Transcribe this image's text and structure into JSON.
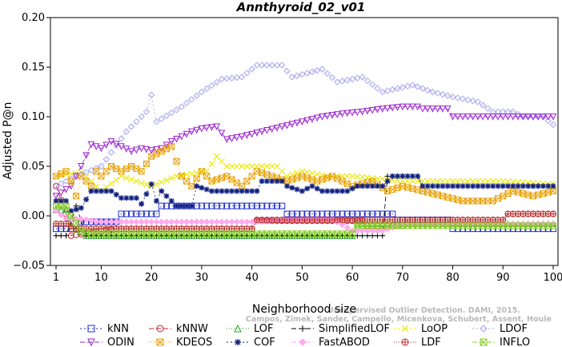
{
  "chart_data": {
    "type": "line",
    "title": "Annthyroid_02_v01",
    "xlabel": "Neighborhood size",
    "ylabel": "Adjusted P@n",
    "xlim": [
      1,
      100
    ],
    "ylim": [
      -0.05,
      0.2
    ],
    "xticks": [
      1,
      10,
      20,
      30,
      40,
      50,
      60,
      70,
      80,
      90,
      100
    ],
    "yticks": [
      -0.05,
      0.0,
      0.05,
      0.1,
      0.15,
      0.2
    ],
    "ytick_labels": [
      "−0.05",
      "0.00",
      "0.05",
      "0.10",
      "0.15",
      "0.20"
    ],
    "grid": false,
    "legend_position": "bottom",
    "watermark": [
      "Campos, Zimek, Sander, Campello, Micenkova, Schubert, Assent, Houle",
      "Unsupervised Outlier Detection. DAMI, 2015."
    ],
    "series": [
      {
        "name": "kNN",
        "color": "#1f2fc8",
        "marker": "square",
        "dash": "2,3",
        "segments": [
          [
            1,
            -0.013
          ],
          [
            5,
            -0.013
          ],
          [
            6,
            -0.006
          ],
          [
            13,
            -0.006
          ],
          [
            14,
            0.002
          ],
          [
            21,
            0.002
          ],
          [
            22,
            0.01
          ],
          [
            46,
            0.01
          ],
          [
            47,
            0.002
          ],
          [
            68,
            0.002
          ],
          [
            69,
            -0.004
          ],
          [
            79,
            -0.004
          ],
          [
            80,
            -0.013
          ],
          [
            100,
            -0.013
          ]
        ]
      },
      {
        "name": "kNNW",
        "color": "#d0202a",
        "marker": "circle",
        "dash": "6,3",
        "segments": [
          [
            1,
            0.03
          ],
          [
            3,
            0.002
          ],
          [
            4,
            -0.02
          ],
          [
            13,
            -0.013
          ],
          [
            40,
            -0.013
          ],
          [
            41,
            -0.005
          ],
          [
            62,
            -0.005
          ],
          [
            63,
            -0.01
          ],
          [
            70,
            -0.01
          ],
          [
            71,
            -0.004
          ],
          [
            90,
            -0.004
          ],
          [
            91,
            0.002
          ],
          [
            100,
            0.002
          ]
        ]
      },
      {
        "name": "LOF",
        "color": "#22b022",
        "marker": "triangle-up",
        "dash": "1,2",
        "segments": [
          [
            1,
            0.006
          ],
          [
            3,
            0.006
          ],
          [
            4,
            -0.01
          ],
          [
            7,
            -0.02
          ],
          [
            60,
            -0.02
          ],
          [
            61,
            -0.008
          ],
          [
            100,
            -0.008
          ]
        ]
      },
      {
        "name": "SimplifiedLOF",
        "color": "#000000",
        "marker": "plus",
        "dash": "6,3",
        "segments": [
          [
            1,
            -0.02
          ],
          [
            3,
            -0.02
          ],
          [
            5,
            0.01
          ],
          [
            7,
            -0.02
          ],
          [
            66,
            -0.02
          ],
          [
            67,
            0.04
          ],
          [
            73,
            0.04
          ],
          [
            74,
            0.03
          ],
          [
            100,
            0.03
          ]
        ]
      },
      {
        "name": "LoOP",
        "color": "#e8e800",
        "marker": "x",
        "dash": "2,3",
        "segments": [
          [
            1,
            0.04
          ],
          [
            6,
            0.044
          ],
          [
            10,
            0.025
          ],
          [
            14,
            0.04
          ],
          [
            20,
            0.03
          ],
          [
            25,
            0.04
          ],
          [
            31,
            0.045
          ],
          [
            33,
            0.06
          ],
          [
            35,
            0.05
          ],
          [
            45,
            0.05
          ],
          [
            47,
            0.04
          ],
          [
            50,
            0.045
          ],
          [
            55,
            0.04
          ],
          [
            60,
            0.04
          ],
          [
            70,
            0.035
          ],
          [
            80,
            0.035
          ],
          [
            90,
            0.035
          ],
          [
            100,
            0.032
          ]
        ]
      },
      {
        "name": "LDOF",
        "color": "#a8a8ee",
        "marker": "diamond",
        "dash": "2,3",
        "segments": [
          [
            1,
            0.03
          ],
          [
            5,
            0.04
          ],
          [
            10,
            0.05
          ],
          [
            15,
            0.085
          ],
          [
            19,
            0.105
          ],
          [
            20,
            0.122
          ],
          [
            21,
            0.095
          ],
          [
            26,
            0.11
          ],
          [
            30,
            0.125
          ],
          [
            34,
            0.138
          ],
          [
            38,
            0.14
          ],
          [
            41,
            0.152
          ],
          [
            46,
            0.152
          ],
          [
            48,
            0.14
          ],
          [
            54,
            0.148
          ],
          [
            57,
            0.135
          ],
          [
            62,
            0.14
          ],
          [
            66,
            0.125
          ],
          [
            72,
            0.132
          ],
          [
            76,
            0.125
          ],
          [
            80,
            0.12
          ],
          [
            85,
            0.115
          ],
          [
            88,
            0.105
          ],
          [
            92,
            0.105
          ],
          [
            94,
            0.1
          ],
          [
            98,
            0.1
          ],
          [
            100,
            0.092
          ]
        ]
      },
      {
        "name": "ODIN",
        "color": "#9a22cc",
        "marker": "triangle-down",
        "dash": "6,3",
        "segments": [
          [
            1,
            0.02
          ],
          [
            4,
            0.03
          ],
          [
            6,
            0.05
          ],
          [
            8,
            0.072
          ],
          [
            10,
            0.068
          ],
          [
            12,
            0.075
          ],
          [
            14,
            0.07
          ],
          [
            16,
            0.065
          ],
          [
            18,
            0.068
          ],
          [
            20,
            0.066
          ],
          [
            22,
            0.068
          ],
          [
            24,
            0.075
          ],
          [
            26,
            0.08
          ],
          [
            28,
            0.085
          ],
          [
            30,
            0.088
          ],
          [
            33,
            0.09
          ],
          [
            35,
            0.077
          ],
          [
            38,
            0.08
          ],
          [
            42,
            0.085
          ],
          [
            46,
            0.09
          ],
          [
            50,
            0.095
          ],
          [
            54,
            0.1
          ],
          [
            58,
            0.103
          ],
          [
            62,
            0.105
          ],
          [
            66,
            0.108
          ],
          [
            70,
            0.11
          ],
          [
            73,
            0.11
          ],
          [
            74,
            0.108
          ],
          [
            79,
            0.108
          ],
          [
            80,
            0.1
          ],
          [
            100,
            0.1
          ]
        ]
      },
      {
        "name": "KDEOS",
        "color": "#e8a000",
        "marker": "box-x",
        "dash": "1,2",
        "segments": [
          [
            1,
            0.04
          ],
          [
            3,
            0.045
          ],
          [
            4,
            0.035
          ],
          [
            5,
            0.02
          ],
          [
            6,
            0.04
          ],
          [
            8,
            0.03
          ],
          [
            9,
            0.045
          ],
          [
            10,
            0.04
          ],
          [
            12,
            0.05
          ],
          [
            14,
            0.045
          ],
          [
            16,
            0.05
          ],
          [
            18,
            0.045
          ],
          [
            20,
            0.06
          ],
          [
            22,
            0.065
          ],
          [
            24,
            0.07
          ],
          [
            26,
            0.04
          ],
          [
            28,
            0.03
          ],
          [
            30,
            0.045
          ],
          [
            32,
            0.035
          ],
          [
            35,
            0.04
          ],
          [
            38,
            0.03
          ],
          [
            41,
            0.045
          ],
          [
            44,
            0.04
          ],
          [
            47,
            0.035
          ],
          [
            50,
            0.04
          ],
          [
            53,
            0.035
          ],
          [
            56,
            0.04
          ],
          [
            60,
            0.03
          ],
          [
            64,
            0.035
          ],
          [
            67,
            0.025
          ],
          [
            70,
            0.03
          ],
          [
            74,
            0.025
          ],
          [
            78,
            0.02
          ],
          [
            82,
            0.015
          ],
          [
            88,
            0.015
          ],
          [
            92,
            0.025
          ],
          [
            96,
            0.02
          ],
          [
            100,
            0.025
          ]
        ]
      },
      {
        "name": "COF",
        "color": "#102080",
        "marker": "star",
        "dash": "2,3",
        "segments": [
          [
            1,
            0.015
          ],
          [
            3,
            0.015
          ],
          [
            4,
            0.005
          ],
          [
            6,
            0.008
          ],
          [
            8,
            0.025
          ],
          [
            12,
            0.025
          ],
          [
            14,
            0.018
          ],
          [
            17,
            0.018
          ],
          [
            18,
            0.012
          ],
          [
            20,
            0.032
          ],
          [
            21,
            0.015
          ],
          [
            22,
            0.025
          ],
          [
            24,
            0.015
          ],
          [
            25,
            0.01
          ],
          [
            28,
            0.01
          ],
          [
            29,
            0.03
          ],
          [
            32,
            0.025
          ],
          [
            41,
            0.025
          ],
          [
            42,
            0.035
          ],
          [
            46,
            0.035
          ],
          [
            47,
            0.03
          ],
          [
            50,
            0.025
          ],
          [
            52,
            0.03
          ],
          [
            54,
            0.025
          ],
          [
            59,
            0.025
          ],
          [
            61,
            0.03
          ],
          [
            66,
            0.03
          ],
          [
            68,
            0.04
          ],
          [
            73,
            0.04
          ],
          [
            74,
            0.03
          ],
          [
            100,
            0.03
          ]
        ]
      },
      {
        "name": "FastABOD",
        "color": "#ffaaee",
        "marker": "diamond-filled",
        "dash": "6,3",
        "segments": [
          [
            1,
            0.005
          ],
          [
            3,
            -0.003
          ],
          [
            6,
            -0.003
          ],
          [
            10,
            -0.006
          ],
          [
            30,
            -0.006
          ],
          [
            40,
            -0.006
          ],
          [
            50,
            -0.003
          ],
          [
            56,
            -0.003
          ],
          [
            60,
            -0.015
          ],
          [
            66,
            -0.015
          ],
          [
            70,
            -0.008
          ],
          [
            100,
            -0.008
          ]
        ]
      },
      {
        "name": "LDF",
        "color": "#b83030",
        "marker": "circle-plus",
        "dash": "1,2",
        "segments": [
          [
            1,
            -0.008
          ],
          [
            3,
            -0.008
          ],
          [
            5,
            -0.013
          ],
          [
            40,
            -0.013
          ],
          [
            41,
            -0.004
          ],
          [
            70,
            -0.004
          ],
          [
            71,
            -0.004
          ],
          [
            90,
            -0.004
          ],
          [
            91,
            0.002
          ],
          [
            100,
            0.002
          ]
        ]
      },
      {
        "name": "INFLO",
        "color": "#88cc22",
        "marker": "box-x",
        "dash": "6,3",
        "segments": [
          [
            1,
            0.01
          ],
          [
            3,
            0.01
          ],
          [
            4,
            0.0
          ],
          [
            6,
            -0.015
          ],
          [
            8,
            -0.018
          ],
          [
            60,
            -0.018
          ],
          [
            61,
            -0.01
          ],
          [
            100,
            -0.01
          ]
        ]
      }
    ]
  }
}
